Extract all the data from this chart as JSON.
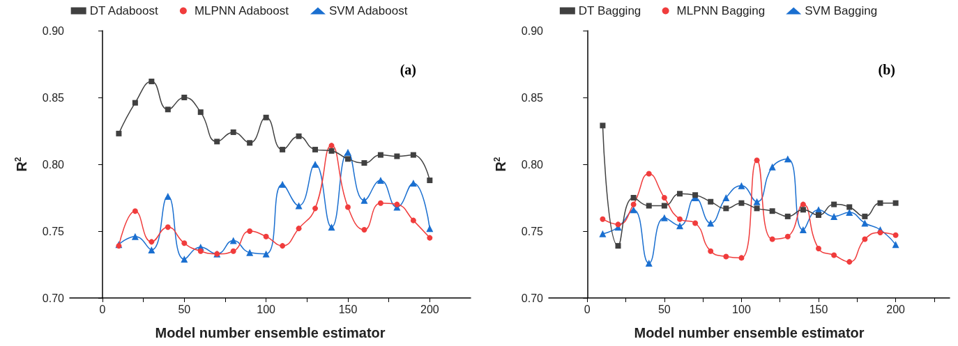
{
  "chart_data": [
    {
      "type": "line",
      "xlabel": "Model number ensemble estimator",
      "ylabel": "R$^{2}$",
      "annotations": [
        "(a)"
      ],
      "legend": "top",
      "xlim": [
        -20,
        225
      ],
      "xticks": [
        0,
        {
          "value": 25,
          "label": null
        },
        50,
        {
          "value": 75,
          "label": null
        },
        100,
        {
          "value": 125,
          "label": null
        },
        150,
        {
          "value": 175,
          "label": null
        },
        200
      ],
      "ylim": [
        0.7,
        0.9
      ],
      "yticks": [
        {
          "value": 0.7,
          "label": "0.70"
        },
        {
          "value": 0.75,
          "label": "0.75"
        },
        {
          "value": 0.8,
          "label": "0.80"
        },
        {
          "value": 0.85,
          "label": "0.85"
        },
        {
          "value": 0.9,
          "label": "0.90"
        }
      ],
      "x": [
        10,
        20,
        30,
        40,
        50,
        60,
        70,
        80,
        90,
        100,
        110,
        120,
        130,
        140,
        150,
        160,
        170,
        180,
        190,
        200
      ],
      "series": [
        {
          "name": "DT Adaboost",
          "color": "#404040",
          "marker": "square",
          "values": [
            0.823,
            0.846,
            0.862,
            0.841,
            0.85,
            0.839,
            0.817,
            0.824,
            0.816,
            0.835,
            0.811,
            0.821,
            0.811,
            0.81,
            0.804,
            0.801,
            0.807,
            0.806,
            0.807,
            0.788
          ]
        },
        {
          "name": "MLPNN Adaboost",
          "color": "#f03c3c",
          "marker": "circle",
          "values": [
            0.739,
            0.765,
            0.742,
            0.753,
            0.741,
            0.735,
            0.733,
            0.735,
            0.75,
            0.746,
            0.739,
            0.752,
            0.767,
            0.814,
            0.768,
            0.751,
            0.771,
            0.77,
            0.758,
            0.745
          ]
        },
        {
          "name": "SVM Adaboost",
          "color": "#1a6fd0",
          "marker": "triangle",
          "values": [
            0.74,
            0.746,
            0.736,
            0.776,
            0.729,
            0.738,
            0.733,
            0.743,
            0.734,
            0.733,
            0.785,
            0.769,
            0.8,
            0.753,
            0.809,
            0.773,
            0.788,
            0.768,
            0.786,
            0.752
          ]
        }
      ]
    },
    {
      "type": "line",
      "xlabel": "Model number ensemble estimator",
      "ylabel": "R$^{2}$",
      "annotations": [
        "(b)"
      ],
      "legend": "top",
      "xlim": [
        -25,
        235
      ],
      "xticks": [
        0,
        {
          "value": 25,
          "label": null
        },
        50,
        {
          "value": 75,
          "label": null
        },
        100,
        {
          "value": 125,
          "label": null
        },
        150,
        {
          "value": 175,
          "label": null
        },
        200,
        {
          "value": 225,
          "label": null
        }
      ],
      "ylim": [
        0.7,
        0.9
      ],
      "yticks": [
        {
          "value": 0.7,
          "label": "0.70"
        },
        {
          "value": 0.75,
          "label": "0.75"
        },
        {
          "value": 0.8,
          "label": "0.80"
        },
        {
          "value": 0.85,
          "label": "0.85"
        },
        {
          "value": 0.9,
          "label": "0.90"
        }
      ],
      "x": [
        10,
        20,
        30,
        40,
        50,
        60,
        70,
        80,
        90,
        100,
        110,
        120,
        130,
        140,
        150,
        160,
        170,
        180,
        190,
        200
      ],
      "series": [
        {
          "name": "DT Bagging",
          "color": "#404040",
          "marker": "square",
          "values": [
            0.829,
            0.739,
            0.775,
            0.769,
            0.769,
            0.778,
            0.777,
            0.772,
            0.767,
            0.771,
            0.767,
            0.765,
            0.761,
            0.766,
            0.762,
            0.77,
            0.768,
            0.761,
            0.771,
            0.771
          ]
        },
        {
          "name": "MLPNN Bagging",
          "color": "#f03c3c",
          "marker": "circle",
          "values": [
            0.759,
            0.755,
            0.77,
            0.793,
            0.775,
            0.759,
            0.756,
            0.735,
            0.731,
            0.73,
            0.803,
            0.744,
            0.746,
            0.77,
            0.737,
            0.732,
            0.727,
            0.744,
            0.749,
            0.747
          ]
        },
        {
          "name": "SVM Bagging",
          "color": "#1a6fd0",
          "marker": "triangle",
          "values": [
            0.748,
            0.753,
            0.766,
            0.726,
            0.76,
            0.754,
            0.775,
            0.756,
            0.775,
            0.784,
            0.772,
            0.798,
            0.804,
            0.751,
            0.766,
            0.761,
            0.764,
            0.756,
            0.751,
            0.74
          ]
        }
      ]
    }
  ]
}
